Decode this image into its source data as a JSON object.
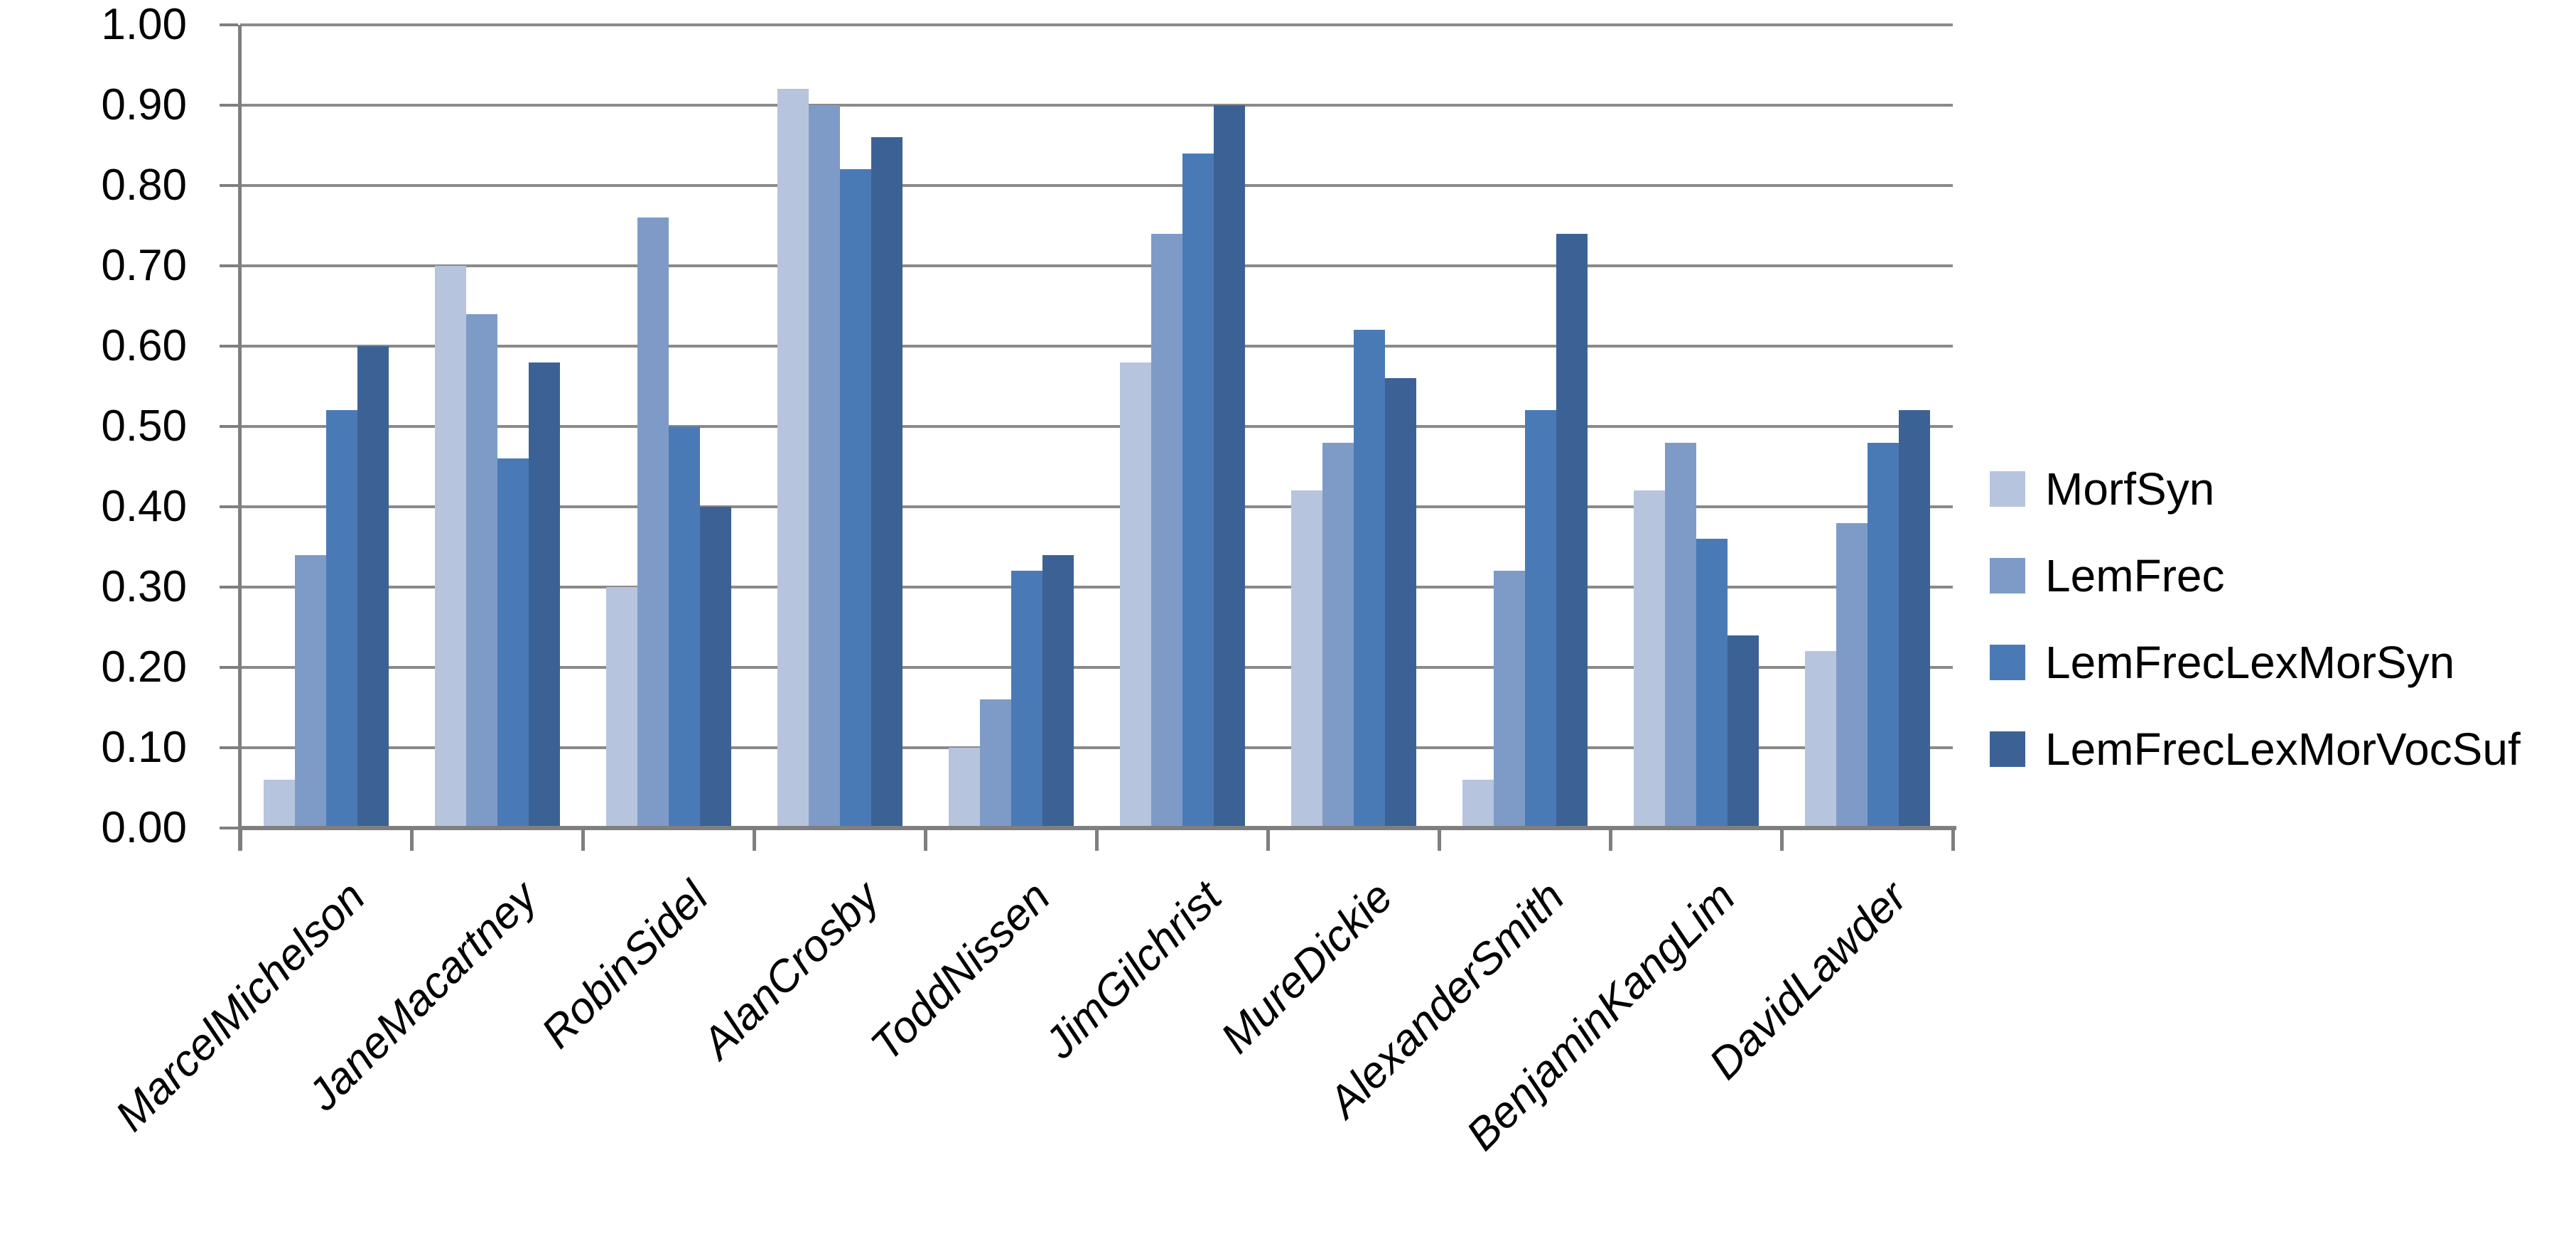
{
  "chart_data": {
    "type": "bar",
    "title": "",
    "xlabel": "",
    "ylabel": "",
    "categories": [
      "MarcelMichelson",
      "JaneMacartney",
      "RobinSidel",
      "AlanCrosby",
      "ToddNissen",
      "JimGilchrist",
      "MureDickie",
      "AlexanderSmith",
      "BenjaminKangLim",
      "DavidLawder"
    ],
    "series": [
      {
        "name": "MorfSyn",
        "color": "#b6c4de",
        "values": [
          0.06,
          0.7,
          0.3,
          0.92,
          0.1,
          0.58,
          0.42,
          0.06,
          0.42,
          0.22
        ]
      },
      {
        "name": "LemFrec",
        "color": "#7d9bc6",
        "values": [
          0.34,
          0.64,
          0.76,
          0.9,
          0.16,
          0.74,
          0.48,
          0.32,
          0.48,
          0.38
        ]
      },
      {
        "name": "LemFrecLexMorSyn",
        "color": "#4a7ab5",
        "values": [
          0.52,
          0.46,
          0.5,
          0.82,
          0.32,
          0.84,
          0.62,
          0.52,
          0.36,
          0.48
        ]
      },
      {
        "name": "LemFrecLexMorVocSuf",
        "color": "#3c6295",
        "values": [
          0.6,
          0.58,
          0.4,
          0.86,
          0.34,
          0.9,
          0.56,
          0.74,
          0.24,
          0.52
        ]
      }
    ],
    "ylim": [
      0.0,
      1.0
    ],
    "y_tick_step": 0.1,
    "y_tick_labels": [
      "0.00",
      "0.10",
      "0.20",
      "0.30",
      "0.40",
      "0.50",
      "0.60",
      "0.70",
      "0.80",
      "0.90",
      "1.00"
    ],
    "grid": true,
    "legend_position": "right"
  },
  "style_colors": {
    "gridline": "#8a8a8a",
    "axis": "#7f7f7f",
    "text": "#000000",
    "background": "#ffffff"
  }
}
